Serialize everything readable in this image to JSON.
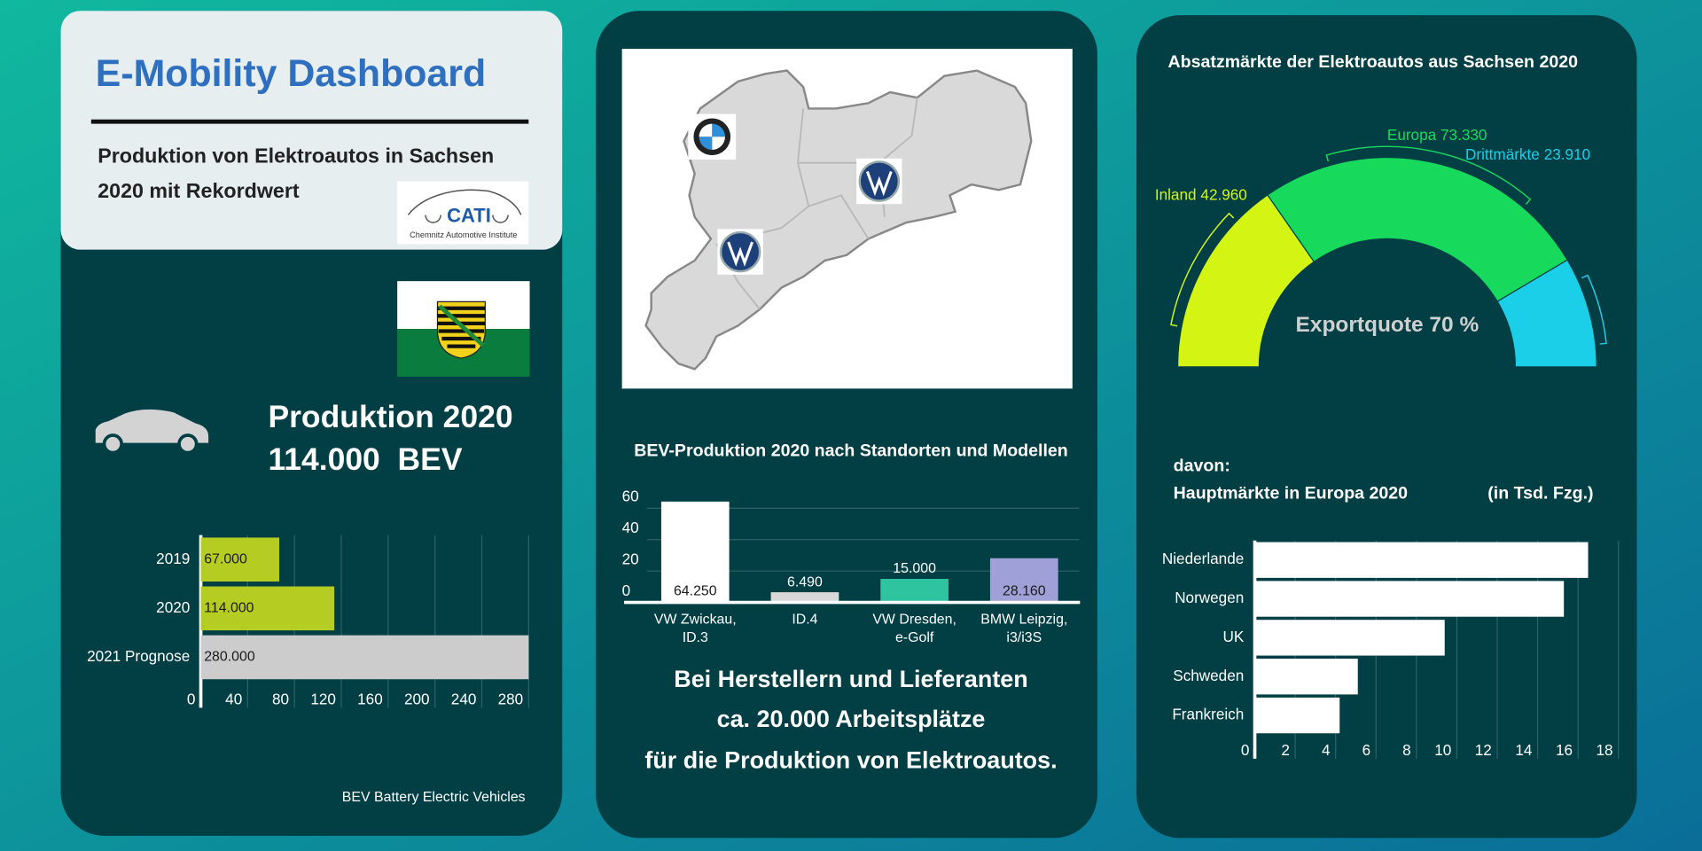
{
  "header": {
    "title": "E-Mobility Dashboard",
    "subtitle_lines": [
      "Produktion von Elektroautos in Sachsen",
      "2020 mit Rekordwert"
    ],
    "logo": {
      "name": "CATI",
      "caption": "Chemnitz Automotive Institute"
    }
  },
  "kpi": {
    "label": "Produktion 2020",
    "value": "114.000  BEV"
  },
  "footnote": "BEV Battery Electric Vehicles",
  "jobs_text": [
    "Bei Herstellern und Lieferanten",
    "ca. 20.000 Arbeitsplätze",
    "für die Produktion von Elektroautos."
  ],
  "chart_data": [
    {
      "type": "barh",
      "categories": [
        "2019",
        "2020",
        "2021 Prognose"
      ],
      "values": [
        67,
        114,
        280
      ],
      "value_labels": [
        "67.000",
        "114.000",
        "280.000"
      ],
      "colors": [
        "#b5cc22",
        "#b5cc22",
        "#cccccc"
      ],
      "xlim": [
        0,
        280
      ],
      "xticks": [
        0,
        40,
        80,
        120,
        160,
        200,
        240,
        280
      ],
      "grid": true
    },
    {
      "type": "pie",
      "semicircle": true,
      "title": "Absatzmärkte der Elektroautos aus Sachsen 2020",
      "categories": [
        "Inland",
        "Europa",
        "Drittmärkte"
      ],
      "values": [
        42960,
        73330,
        23910
      ],
      "value_labels": [
        "42.960",
        "73.330",
        "23.910"
      ],
      "colors": [
        "#d4f514",
        "#17d95c",
        "#1ccfe8"
      ],
      "annotation": "Exportquote 70 %"
    },
    {
      "type": "bar",
      "title": "BEV-Produktion 2020 nach Standorten und Modellen",
      "categories": [
        [
          "VW Zwickau,",
          "ID.3"
        ],
        [
          "ID.4"
        ],
        [
          "VW Dresden,",
          "e-Golf"
        ],
        [
          "BMW Leipzig,",
          "i3/i3S"
        ]
      ],
      "values": [
        64.25,
        6.49,
        15,
        28.16
      ],
      "value_labels": [
        "64.250",
        "6.490",
        "15.000",
        "28.160"
      ],
      "colors": [
        "#ffffff",
        "#d9d9d9",
        "#2ec4a0",
        "#a0a0d8"
      ],
      "ylim": [
        0,
        65
      ],
      "yticks": [
        0,
        20,
        40,
        60
      ],
      "grid": true
    },
    {
      "type": "barh",
      "title_lines": [
        "davon:",
        "Hauptmärkte in Europa 2020"
      ],
      "unit_note": "(in Tsd. Fzg.)",
      "categories": [
        "Niederlande",
        "Norwegen",
        "UK",
        "Schweden",
        "Frankreich"
      ],
      "values": [
        16.5,
        15.3,
        9.4,
        5.1,
        4.2
      ],
      "color": "#ffffff",
      "xlim": [
        0,
        18
      ],
      "xticks": [
        0,
        2,
        4,
        6,
        8,
        10,
        12,
        14,
        16,
        18
      ],
      "grid": true
    }
  ]
}
